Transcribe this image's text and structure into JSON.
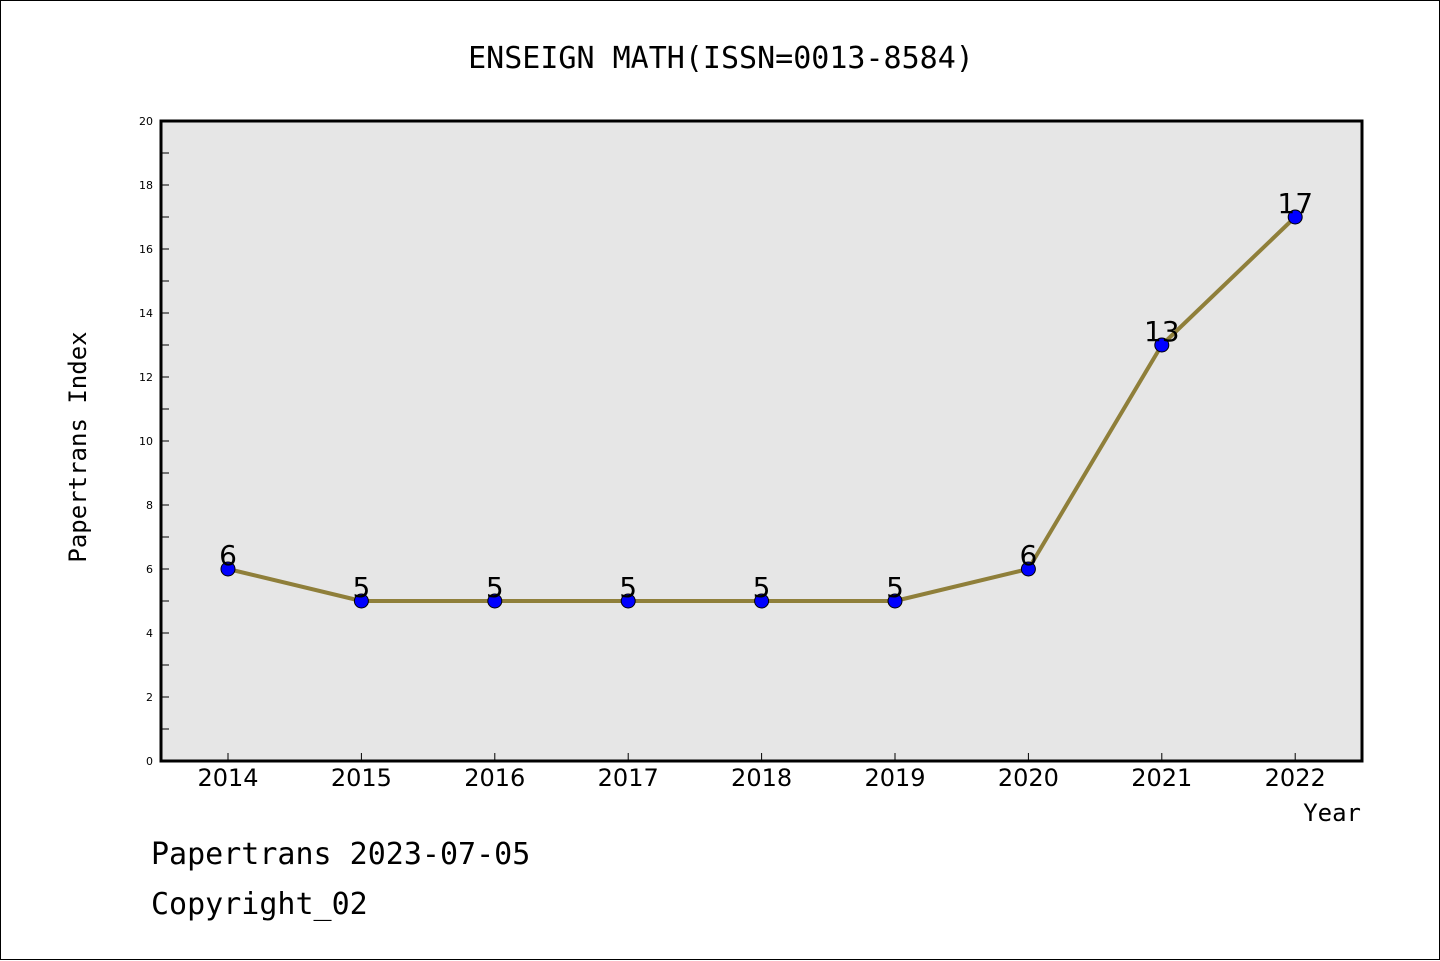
{
  "chart_data": {
    "type": "line",
    "title": "ENSEIGN MATH(ISSN=0013-8584)",
    "xlabel": "Year",
    "ylabel": "Papertrans Index",
    "categories": [
      "2014",
      "2015",
      "2016",
      "2017",
      "2018",
      "2019",
      "2020",
      "2021",
      "2022"
    ],
    "series": [
      {
        "values": [
          6,
          5,
          5,
          5,
          5,
          5,
          6,
          13,
          17
        ]
      }
    ],
    "data_labels": [
      "6",
      "5",
      "5",
      "5",
      "5",
      "5",
      "6",
      "13",
      "17"
    ],
    "ylim": [
      0,
      20
    ],
    "yticks": [
      "0",
      "2",
      "4",
      "6",
      "8",
      "10",
      "12",
      "14",
      "16",
      "18",
      "20"
    ],
    "grid": false,
    "legend": "none",
    "colors": {
      "line": "#8f7f3a",
      "marker_fill": "#0000ff",
      "marker_edge": "#000000",
      "plot_background": "#e6e6e6"
    }
  },
  "footer": {
    "source": "Papertrans 2023-07-05",
    "copyright": "Copyright_02"
  }
}
